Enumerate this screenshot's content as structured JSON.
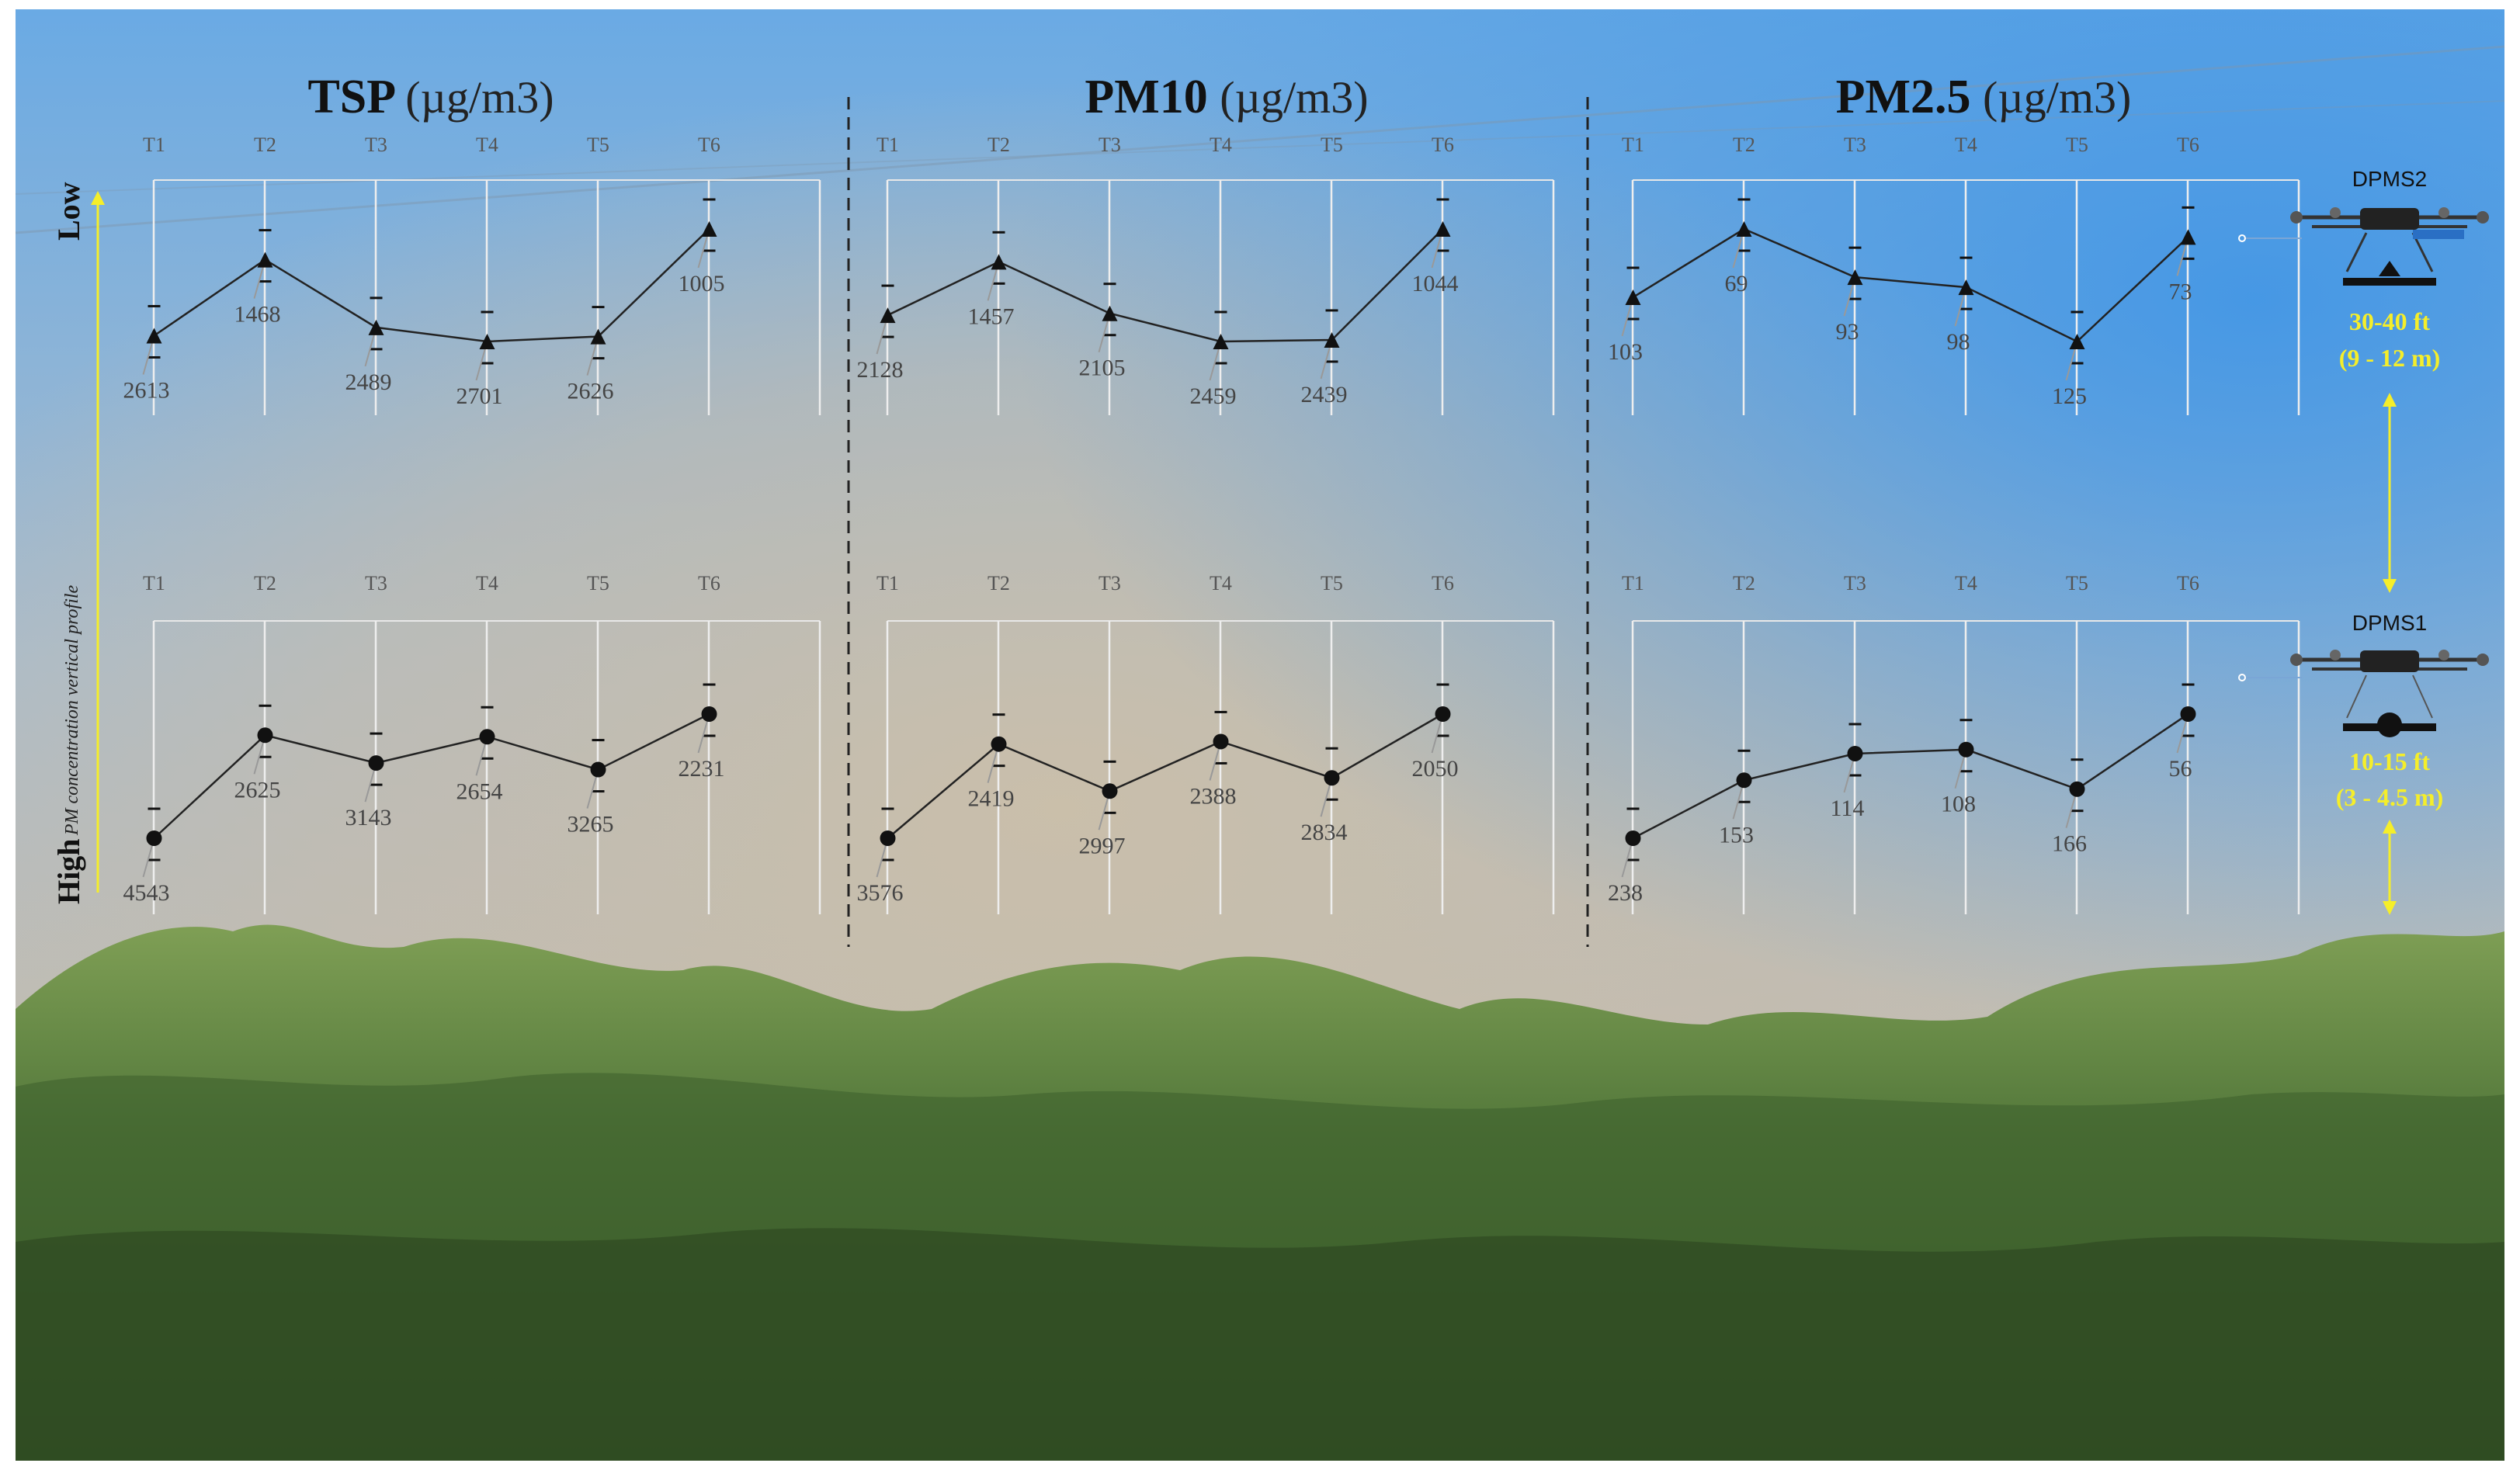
{
  "colors": {
    "sky_top": "#5ea6e6",
    "sky_mid": "#b9c3cc",
    "haze": "#c7bba9",
    "canopy": "#4f7a31",
    "canopy_light": "#8aa85a",
    "marker": "#111111",
    "line": "#222222",
    "annotation": "#f5ee2a"
  },
  "chart_data": [
    {
      "type": "line",
      "title": "TSP",
      "unit": "(µg/m3)",
      "categories": [
        "T1",
        "T2",
        "T3",
        "T4",
        "T5",
        "T6"
      ],
      "series": [
        {
          "name": "Low",
          "marker": "triangle",
          "values": [
            2613,
            1468,
            2489,
            2701,
            2626,
            1005
          ]
        },
        {
          "name": "High",
          "marker": "circle",
          "values": [
            4543,
            2625,
            3143,
            2654,
            3265,
            2231
          ]
        }
      ]
    },
    {
      "type": "line",
      "title": "PM10",
      "unit": "(µg/m3)",
      "categories": [
        "T1",
        "T2",
        "T3",
        "T4",
        "T5",
        "T6"
      ],
      "series": [
        {
          "name": "Low",
          "marker": "triangle",
          "values": [
            2128,
            1457,
            2105,
            2459,
            2439,
            1044
          ]
        },
        {
          "name": "High",
          "marker": "circle",
          "values": [
            3576,
            2419,
            2997,
            2388,
            2834,
            2050
          ]
        }
      ]
    },
    {
      "type": "line",
      "title": "PM2.5",
      "unit": "(µg/m3)",
      "categories": [
        "T1",
        "T2",
        "T3",
        "T4",
        "T5",
        "T6"
      ],
      "series": [
        {
          "name": "Low",
          "marker": "triangle",
          "values": [
            103,
            69,
            93,
            98,
            125,
            73
          ]
        },
        {
          "name": "High",
          "marker": "circle",
          "values": [
            238,
            153,
            114,
            108,
            166,
            56
          ]
        }
      ]
    }
  ],
  "rows": {
    "low_label": "Low",
    "high_label": "High",
    "axis_label": "PM concentration vertical profile"
  },
  "drones": {
    "upper": {
      "name": "DPMS2",
      "altitude_ft": "30-40 ft",
      "altitude_m": "(9 - 12 m)",
      "marker_icon": "triangle-marker-icon"
    },
    "lower": {
      "name": "DPMS1",
      "altitude_ft": "10-15 ft",
      "altitude_m": "(3 - 4.5 m)",
      "marker_icon": "circle-marker-icon"
    }
  }
}
